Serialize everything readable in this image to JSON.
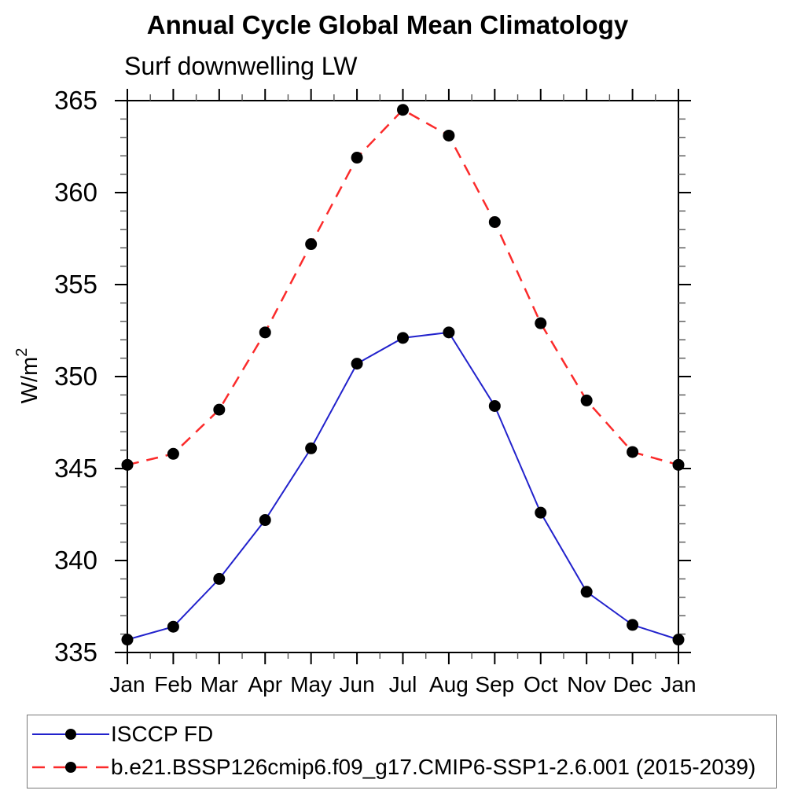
{
  "chart_data": {
    "type": "line",
    "title": "Annual Cycle Global Mean Climatology",
    "subtitle": "Surf downwelling LW",
    "ylabel_base": "W/m",
    "ylabel_exponent": "2",
    "xlabel": "",
    "categories": [
      "Jan",
      "Feb",
      "Mar",
      "Apr",
      "May",
      "Jun",
      "Jul",
      "Aug",
      "Sep",
      "Oct",
      "Nov",
      "Dec",
      "Jan"
    ],
    "ylim": [
      335,
      365
    ],
    "ytick_major_step": 5,
    "ytick_minor_step": 1,
    "ytick_labels": [
      "335",
      "340",
      "345",
      "350",
      "355",
      "360",
      "365"
    ],
    "grid": false,
    "legend_position": "bottom-left-box",
    "series": [
      {
        "name": "ISCCP FD",
        "line_color": "#2222cc",
        "line_style": "solid",
        "line_width": 2,
        "marker": "filled-circle",
        "marker_color": "#000000",
        "values": [
          335.7,
          336.4,
          339.0,
          342.2,
          346.1,
          350.7,
          352.1,
          352.4,
          348.4,
          342.6,
          338.3,
          336.5,
          335.7
        ]
      },
      {
        "name": "b.e21.BSSP126cmip6.f09_g17.CMIP6-SSP1-2.6.001 (2015-2039)",
        "line_color": "#fb2b2b",
        "line_style": "dashed",
        "line_width": 2.5,
        "marker": "filled-circle",
        "marker_color": "#000000",
        "values": [
          345.2,
          345.8,
          348.2,
          352.4,
          357.2,
          361.9,
          364.5,
          363.1,
          358.4,
          352.9,
          348.7,
          345.9,
          345.2
        ]
      }
    ],
    "colors": {
      "axis": "#000000",
      "minor_tick": "#555555",
      "text": "#000000",
      "legend_border": "#777777",
      "background": "#ffffff"
    }
  }
}
